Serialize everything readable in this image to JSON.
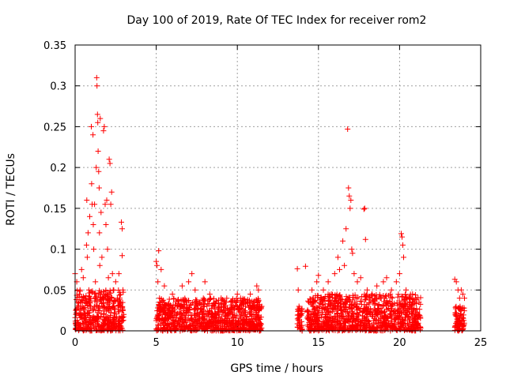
{
  "chart_data": {
    "type": "scatter",
    "title": "Day 100 of 2019, Rate Of TEC Index for receiver rom2",
    "xlabel": "GPS time / hours",
    "ylabel": "ROTI / TECUs",
    "xlim": [
      0,
      25
    ],
    "ylim": [
      0,
      0.35
    ],
    "x_ticks": [
      "0",
      "5",
      "10",
      "15",
      "20",
      "25"
    ],
    "y_ticks": [
      "0",
      "0.05",
      "0.1",
      "0.15",
      "0.2",
      "0.25",
      "0.3",
      "0.35"
    ],
    "grid": true,
    "marker": "+",
    "marker_color": "#ff0000",
    "series": [
      {
        "name": "ROTI",
        "points": [
          [
            0.0,
            0.07
          ],
          [
            0.05,
            0.02
          ],
          [
            0.1,
            0.06
          ],
          [
            0.15,
            0.035
          ],
          [
            0.2,
            0.01
          ],
          [
            0.3,
            0.05
          ],
          [
            0.35,
            0.02
          ],
          [
            0.4,
            0.075
          ],
          [
            0.45,
            0.03
          ],
          [
            0.5,
            0.065
          ],
          [
            0.55,
            0.015
          ],
          [
            0.6,
            0.04
          ],
          [
            0.7,
            0.105
          ],
          [
            0.72,
            0.16
          ],
          [
            0.75,
            0.09
          ],
          [
            0.8,
            0.12
          ],
          [
            0.85,
            0.05
          ],
          [
            0.9,
            0.14
          ],
          [
            0.95,
            0.03
          ],
          [
            1.0,
            0.25
          ],
          [
            1.02,
            0.18
          ],
          [
            1.05,
            0.155
          ],
          [
            1.1,
            0.24
          ],
          [
            1.12,
            0.13
          ],
          [
            1.15,
            0.1
          ],
          [
            1.2,
            0.155
          ],
          [
            1.25,
            0.06
          ],
          [
            1.3,
            0.2
          ],
          [
            1.33,
            0.31
          ],
          [
            1.35,
            0.3
          ],
          [
            1.38,
            0.265
          ],
          [
            1.4,
            0.255
          ],
          [
            1.42,
            0.22
          ],
          [
            1.45,
            0.195
          ],
          [
            1.48,
            0.175
          ],
          [
            1.5,
            0.12
          ],
          [
            1.52,
            0.08
          ],
          [
            1.55,
            0.26
          ],
          [
            1.6,
            0.145
          ],
          [
            1.65,
            0.09
          ],
          [
            1.7,
            0.04
          ],
          [
            1.75,
            0.245
          ],
          [
            1.8,
            0.25
          ],
          [
            1.85,
            0.155
          ],
          [
            1.9,
            0.13
          ],
          [
            1.95,
            0.16
          ],
          [
            2.0,
            0.1
          ],
          [
            2.05,
            0.065
          ],
          [
            2.1,
            0.21
          ],
          [
            2.15,
            0.205
          ],
          [
            2.2,
            0.155
          ],
          [
            2.25,
            0.17
          ],
          [
            2.3,
            0.07
          ],
          [
            2.35,
            0.05
          ],
          [
            2.4,
            0.03
          ],
          [
            2.5,
            0.06
          ],
          [
            2.6,
            0.04
          ],
          [
            2.7,
            0.07
          ],
          [
            2.8,
            0.035
          ],
          [
            2.85,
            0.133
          ],
          [
            2.9,
            0.125
          ],
          [
            2.9,
            0.092
          ],
          [
            2.95,
            0.05
          ],
          [
            3.0,
            0.02
          ],
          [
            5.0,
            0.085
          ],
          [
            5.05,
            0.08
          ],
          [
            5.1,
            0.06
          ],
          [
            5.15,
            0.098
          ],
          [
            5.2,
            0.04
          ],
          [
            5.3,
            0.075
          ],
          [
            5.4,
            0.03
          ],
          [
            5.5,
            0.055
          ],
          [
            5.7,
            0.025
          ],
          [
            6.0,
            0.045
          ],
          [
            6.3,
            0.03
          ],
          [
            6.6,
            0.055
          ],
          [
            7.0,
            0.06
          ],
          [
            7.2,
            0.07
          ],
          [
            7.4,
            0.05
          ],
          [
            7.7,
            0.035
          ],
          [
            8.0,
            0.06
          ],
          [
            8.3,
            0.045
          ],
          [
            8.6,
            0.03
          ],
          [
            9.0,
            0.04
          ],
          [
            9.3,
            0.025
          ],
          [
            9.6,
            0.035
          ],
          [
            10.0,
            0.045
          ],
          [
            10.2,
            0.04
          ],
          [
            10.5,
            0.03
          ],
          [
            10.8,
            0.045
          ],
          [
            11.0,
            0.035
          ],
          [
            11.2,
            0.055
          ],
          [
            11.3,
            0.05
          ],
          [
            11.5,
            0.03
          ],
          [
            13.7,
            0.076
          ],
          [
            13.75,
            0.05
          ],
          [
            13.8,
            0.03
          ],
          [
            13.9,
            0.02
          ],
          [
            14.2,
            0.079
          ],
          [
            14.4,
            0.035
          ],
          [
            14.6,
            0.05
          ],
          [
            14.9,
            0.06
          ],
          [
            15.0,
            0.068
          ],
          [
            15.3,
            0.05
          ],
          [
            15.6,
            0.06
          ],
          [
            15.8,
            0.045
          ],
          [
            16.0,
            0.07
          ],
          [
            16.2,
            0.09
          ],
          [
            16.3,
            0.075
          ],
          [
            16.5,
            0.11
          ],
          [
            16.6,
            0.08
          ],
          [
            16.7,
            0.125
          ],
          [
            16.8,
            0.247
          ],
          [
            16.85,
            0.175
          ],
          [
            16.9,
            0.165
          ],
          [
            16.95,
            0.15
          ],
          [
            17.0,
            0.16
          ],
          [
            17.05,
            0.1
          ],
          [
            17.1,
            0.095
          ],
          [
            17.2,
            0.07
          ],
          [
            17.4,
            0.06
          ],
          [
            17.6,
            0.065
          ],
          [
            17.8,
            0.149
          ],
          [
            17.85,
            0.15
          ],
          [
            17.9,
            0.112
          ],
          [
            18.0,
            0.05
          ],
          [
            18.3,
            0.045
          ],
          [
            18.6,
            0.055
          ],
          [
            19.0,
            0.06
          ],
          [
            19.2,
            0.065
          ],
          [
            19.5,
            0.05
          ],
          [
            19.8,
            0.06
          ],
          [
            20.0,
            0.07
          ],
          [
            20.1,
            0.119
          ],
          [
            20.15,
            0.115
          ],
          [
            20.2,
            0.105
          ],
          [
            20.25,
            0.09
          ],
          [
            20.4,
            0.05
          ],
          [
            20.6,
            0.04
          ],
          [
            20.8,
            0.045
          ],
          [
            21.0,
            0.04
          ],
          [
            21.2,
            0.035
          ],
          [
            23.4,
            0.063
          ],
          [
            23.5,
            0.06
          ],
          [
            23.6,
            0.05
          ],
          [
            23.7,
            0.04
          ],
          [
            23.8,
            0.05
          ],
          [
            23.9,
            0.045
          ],
          [
            24.0,
            0.04
          ]
        ]
      }
    ],
    "dense_bands": [
      {
        "x": [
          0.0,
          3.0
        ],
        "y": [
          0.0,
          0.05
        ]
      },
      {
        "x": [
          5.0,
          11.5
        ],
        "y": [
          0.0,
          0.04
        ]
      },
      {
        "x": [
          13.7,
          14.0
        ],
        "y": [
          0.0,
          0.03
        ]
      },
      {
        "x": [
          14.3,
          21.3
        ],
        "y": [
          0.0,
          0.045
        ]
      },
      {
        "x": [
          23.4,
          24.0
        ],
        "y": [
          0.0,
          0.03
        ]
      }
    ]
  }
}
